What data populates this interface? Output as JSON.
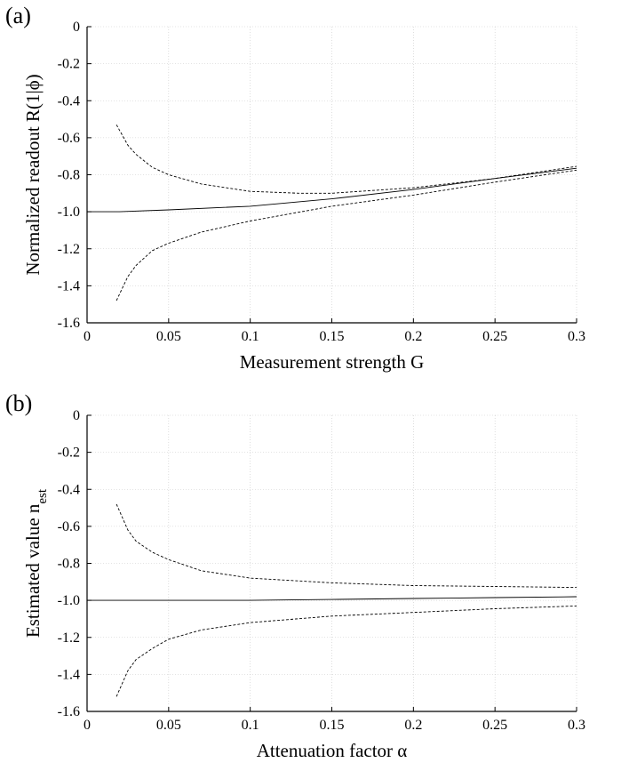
{
  "chart_data": [
    {
      "type": "line",
      "panel_label": "(a)",
      "xlabel": "Measurement strength  G",
      "ylabel": "Normalized readout  R(1|ϕ)",
      "xlim": [
        0,
        0.3
      ],
      "ylim": [
        -1.6,
        0
      ],
      "xticks": [
        "0",
        "0.05",
        "0.1",
        "0.15",
        "0.2",
        "0.25",
        "0.3"
      ],
      "yticks": [
        "0",
        "-0.2",
        "-0.4",
        "-0.6",
        "-0.8",
        "-1.0",
        "-1.2",
        "-1.4",
        "-1.6"
      ],
      "grid": true,
      "series": [
        {
          "style": "solid",
          "x": [
            0.0,
            0.02,
            0.05,
            0.1,
            0.15,
            0.2,
            0.25,
            0.3
          ],
          "y": [
            -1.0,
            -1.0,
            -0.99,
            -0.97,
            -0.93,
            -0.88,
            -0.82,
            -0.765
          ]
        },
        {
          "style": "dashed",
          "x": [
            0.018,
            0.025,
            0.03,
            0.04,
            0.05,
            0.07,
            0.1,
            0.13,
            0.15,
            0.2,
            0.25,
            0.3
          ],
          "y": [
            -0.53,
            -0.64,
            -0.69,
            -0.76,
            -0.8,
            -0.85,
            -0.89,
            -0.9,
            -0.9,
            -0.87,
            -0.82,
            -0.755
          ]
        },
        {
          "style": "dashed",
          "x": [
            0.018,
            0.025,
            0.03,
            0.04,
            0.05,
            0.07,
            0.1,
            0.15,
            0.2,
            0.25,
            0.3
          ],
          "y": [
            -1.48,
            -1.35,
            -1.29,
            -1.21,
            -1.17,
            -1.11,
            -1.05,
            -0.97,
            -0.91,
            -0.84,
            -0.775
          ]
        }
      ]
    },
    {
      "type": "line",
      "panel_label": "(b)",
      "xlabel": "Attenuation factor  α",
      "ylabel": "Estimated value  n",
      "ylabel_sub": "est",
      "xlim": [
        0,
        0.3
      ],
      "ylim": [
        -1.6,
        0
      ],
      "xticks": [
        "0",
        "0.05",
        "0.1",
        "0.15",
        "0.2",
        "0.25",
        "0.3"
      ],
      "yticks": [
        "0",
        "-0.2",
        "-0.4",
        "-0.6",
        "-0.8",
        "-1.0",
        "-1.2",
        "-1.4",
        "-1.6"
      ],
      "grid": true,
      "series": [
        {
          "style": "solid",
          "x": [
            0.0,
            0.05,
            0.1,
            0.15,
            0.2,
            0.25,
            0.3
          ],
          "y": [
            -1.0,
            -1.0,
            -1.0,
            -0.995,
            -0.99,
            -0.985,
            -0.98
          ]
        },
        {
          "style": "dashed",
          "x": [
            0.018,
            0.025,
            0.03,
            0.04,
            0.05,
            0.07,
            0.1,
            0.15,
            0.2,
            0.25,
            0.3
          ],
          "y": [
            -0.48,
            -0.62,
            -0.68,
            -0.74,
            -0.78,
            -0.84,
            -0.88,
            -0.905,
            -0.92,
            -0.925,
            -0.93
          ]
        },
        {
          "style": "dashed",
          "x": [
            0.018,
            0.025,
            0.03,
            0.04,
            0.05,
            0.07,
            0.1,
            0.15,
            0.2,
            0.25,
            0.3
          ],
          "y": [
            -1.52,
            -1.38,
            -1.32,
            -1.26,
            -1.21,
            -1.16,
            -1.12,
            -1.085,
            -1.065,
            -1.045,
            -1.03
          ]
        }
      ]
    }
  ]
}
